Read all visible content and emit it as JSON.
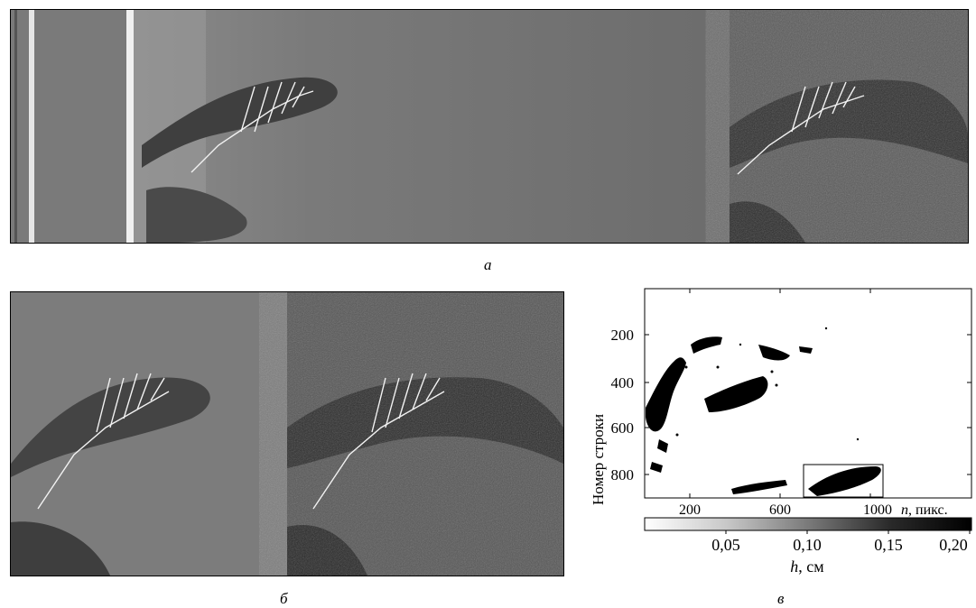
{
  "captions": {
    "a": "а",
    "b": "б",
    "c": "в"
  },
  "plot": {
    "ylabel": "Номер строки",
    "xlabel_n": "n",
    "xlabel_unit": ", пикс.",
    "yticks": [
      "200",
      "400",
      "600",
      "800"
    ],
    "xticks": [
      "200",
      "600",
      "1000"
    ],
    "colorbar_ticks": [
      "0,05",
      "0,10",
      "0,15",
      "0,20"
    ],
    "colorbar_label_h": "h",
    "colorbar_label_unit": ", см"
  },
  "chart_data": {
    "type": "heatmap",
    "xlabel": "n, пикс.",
    "ylabel": "Номер строки",
    "xticks": [
      200,
      600,
      1000
    ],
    "yticks": [
      200,
      400,
      600,
      800
    ],
    "xlim": [
      0,
      1150
    ],
    "ylim": [
      900,
      0
    ],
    "colorbar": {
      "label": "h, см",
      "ticks": [
        0.05,
        0.1,
        0.15,
        0.2
      ],
      "range": [
        0,
        0.2
      ]
    }
  },
  "colors": {
    "background": "#ffffff",
    "ink": "#000000",
    "sea_mid": "#6e6e6e",
    "sea_dark": "#3c3c3c"
  }
}
